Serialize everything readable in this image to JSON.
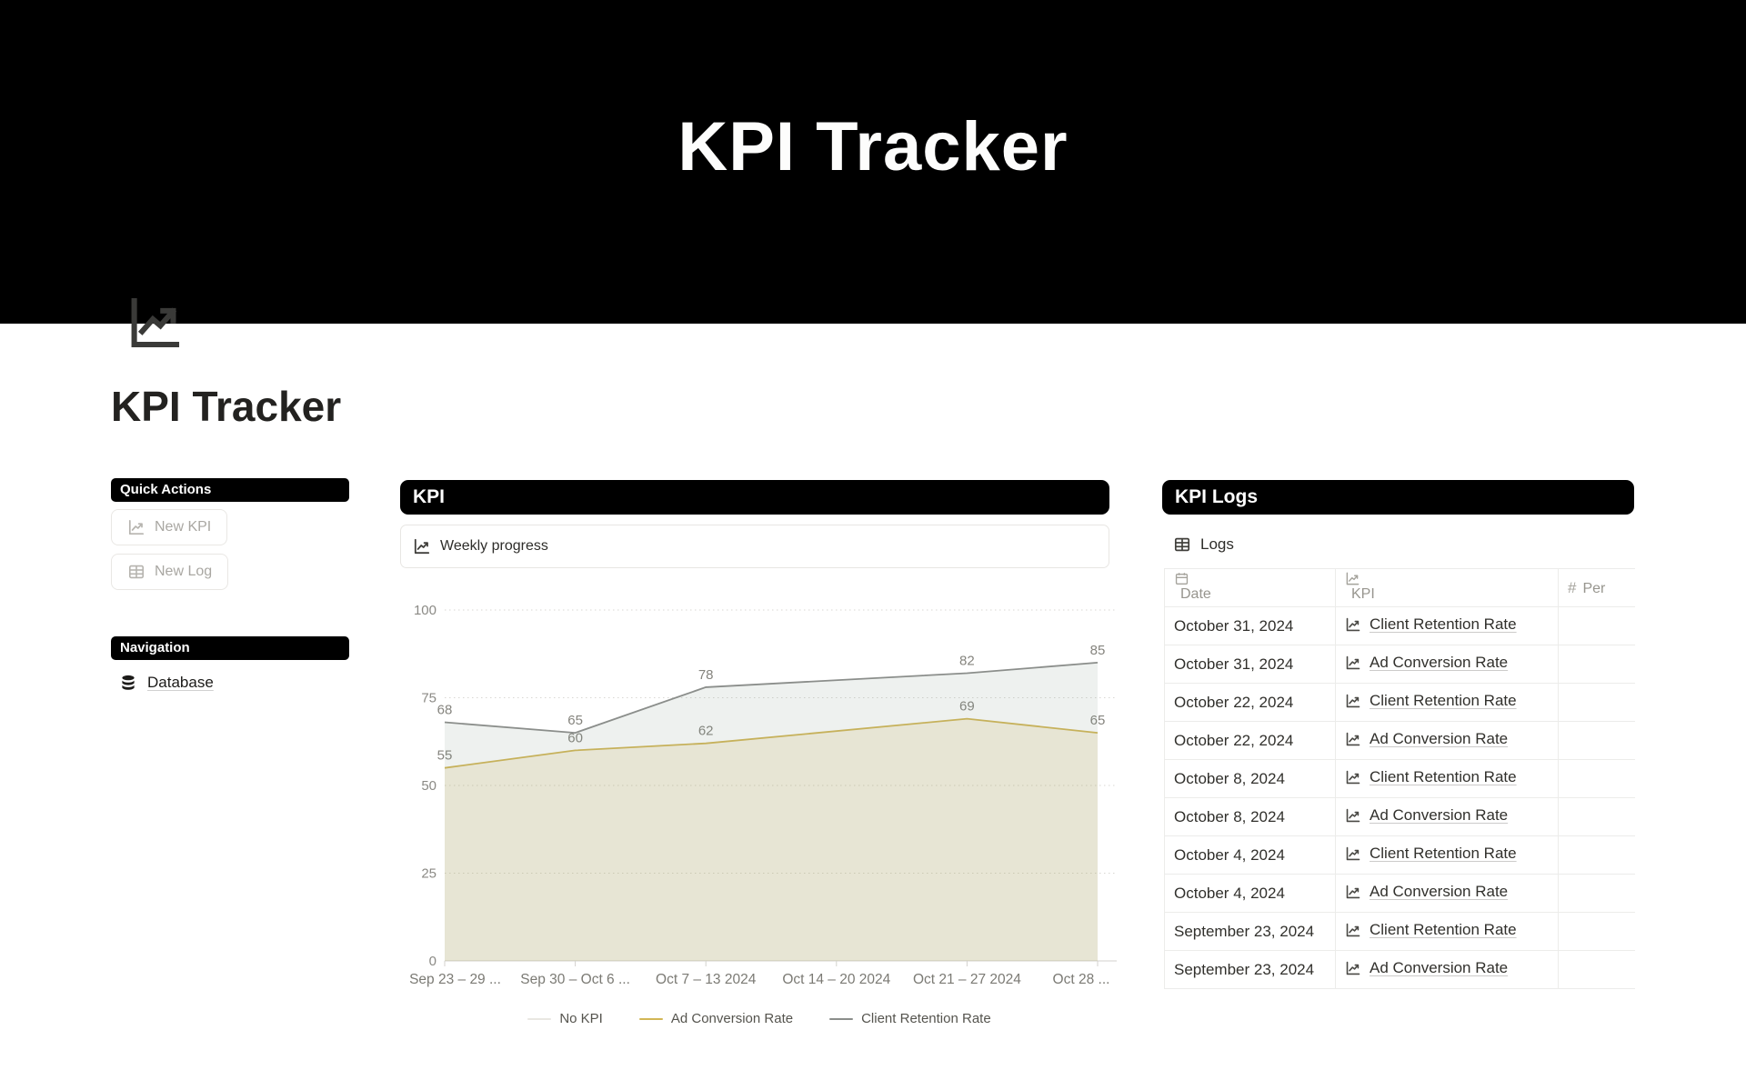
{
  "banner": {
    "title": "KPI Tracker"
  },
  "page": {
    "title": "KPI Tracker",
    "icon": "line-chart-icon"
  },
  "sidebar": {
    "quick_actions": {
      "header": "Quick Actions",
      "buttons": [
        {
          "label": "New KPI",
          "icon": "line-chart-icon"
        },
        {
          "label": "New Log",
          "icon": "table-icon"
        }
      ]
    },
    "navigation": {
      "header": "Navigation",
      "items": [
        {
          "label": "Database",
          "icon": "database-icon"
        }
      ]
    }
  },
  "kpi_section": {
    "header": "KPI",
    "card_title": "Weekly progress",
    "card_icon": "line-chart-icon",
    "chart_data": {
      "type": "line",
      "title": "Weekly progress",
      "categories": [
        "Sep 23 – 29 ...",
        "Sep 30 – Oct 6 ...",
        "Oct 7 – 13 2024",
        "Oct 14 – 20 2024",
        "Oct 21 – 27 2024",
        "Oct 28 ..."
      ],
      "series": [
        {
          "name": "No KPI",
          "color": "#e9e7e2",
          "fill": "rgba(233,231,226,0)",
          "values": [
            null,
            null,
            null,
            null,
            null,
            null
          ]
        },
        {
          "name": "Ad Conversion Rate",
          "color": "#d2b655",
          "fill": "rgba(210,182,85,0.18)",
          "values": [
            55,
            60,
            62,
            null,
            69,
            65
          ]
        },
        {
          "name": "Client Retention Rate",
          "color": "#8b8e8b",
          "fill": "rgba(125,150,133,0.13)",
          "values": [
            68,
            65,
            78,
            null,
            82,
            85
          ]
        }
      ],
      "ylim": [
        0,
        100
      ],
      "yticks": [
        0,
        25,
        50,
        75,
        100
      ],
      "grid": "horizontal-dotted",
      "legend_position": "bottom"
    }
  },
  "logs_section": {
    "header": "KPI Logs",
    "table_title": "Logs",
    "table_icon": "table-icon",
    "columns": [
      {
        "label": "Date",
        "icon": "calendar-icon"
      },
      {
        "label": "KPI",
        "icon": "line-chart-icon"
      },
      {
        "label": "Per",
        "icon": "hash-icon"
      }
    ],
    "rows": [
      {
        "date": "October 31, 2024",
        "kpi": "Client Retention Rate"
      },
      {
        "date": "October 31, 2024",
        "kpi": "Ad Conversion Rate"
      },
      {
        "date": "October 22, 2024",
        "kpi": "Client Retention Rate"
      },
      {
        "date": "October 22, 2024",
        "kpi": "Ad Conversion Rate"
      },
      {
        "date": "October 8, 2024",
        "kpi": "Client Retention Rate"
      },
      {
        "date": "October 8, 2024",
        "kpi": "Ad Conversion Rate"
      },
      {
        "date": "October 4, 2024",
        "kpi": "Client Retention Rate"
      },
      {
        "date": "October 4, 2024",
        "kpi": "Ad Conversion Rate"
      },
      {
        "date": "September 23, 2024",
        "kpi": "Client Retention Rate"
      },
      {
        "date": "September 23, 2024",
        "kpi": "Ad Conversion Rate"
      }
    ]
  }
}
